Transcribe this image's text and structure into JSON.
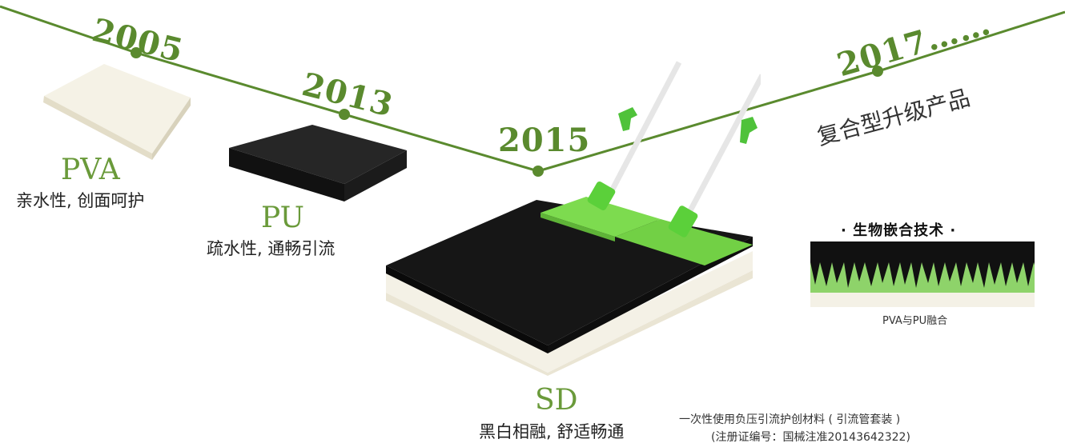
{
  "timeline": {
    "line_color": "#5a8a2e",
    "milestones": [
      {
        "year": "2005"
      },
      {
        "year": "2013"
      },
      {
        "year": "2015"
      },
      {
        "year": "2017……"
      }
    ]
  },
  "products": {
    "pva": {
      "name": "PVA",
      "desc": "亲水性, 创面呵护",
      "color": "#f4f1e4"
    },
    "pu": {
      "name": "PU",
      "desc": "疏水性, 通畅引流",
      "color": "#1a1a1a"
    },
    "sd": {
      "name": "SD",
      "desc": "黑白相融, 舒适畅通"
    }
  },
  "upgrade_text": "复合型升级产品",
  "technology": {
    "title": "· 生物嵌合技术 ·",
    "caption": "PVA与PU融合",
    "accent_color": "#8ed36a"
  },
  "product_note": {
    "line1": "一次性使用负压引流护创材料 ( 引流管套装 )",
    "line2": "(注册证编号：国械注准20143642322)"
  },
  "colors": {
    "green_pad": "#7ddb4f",
    "tube_green": "#4fc23a"
  }
}
